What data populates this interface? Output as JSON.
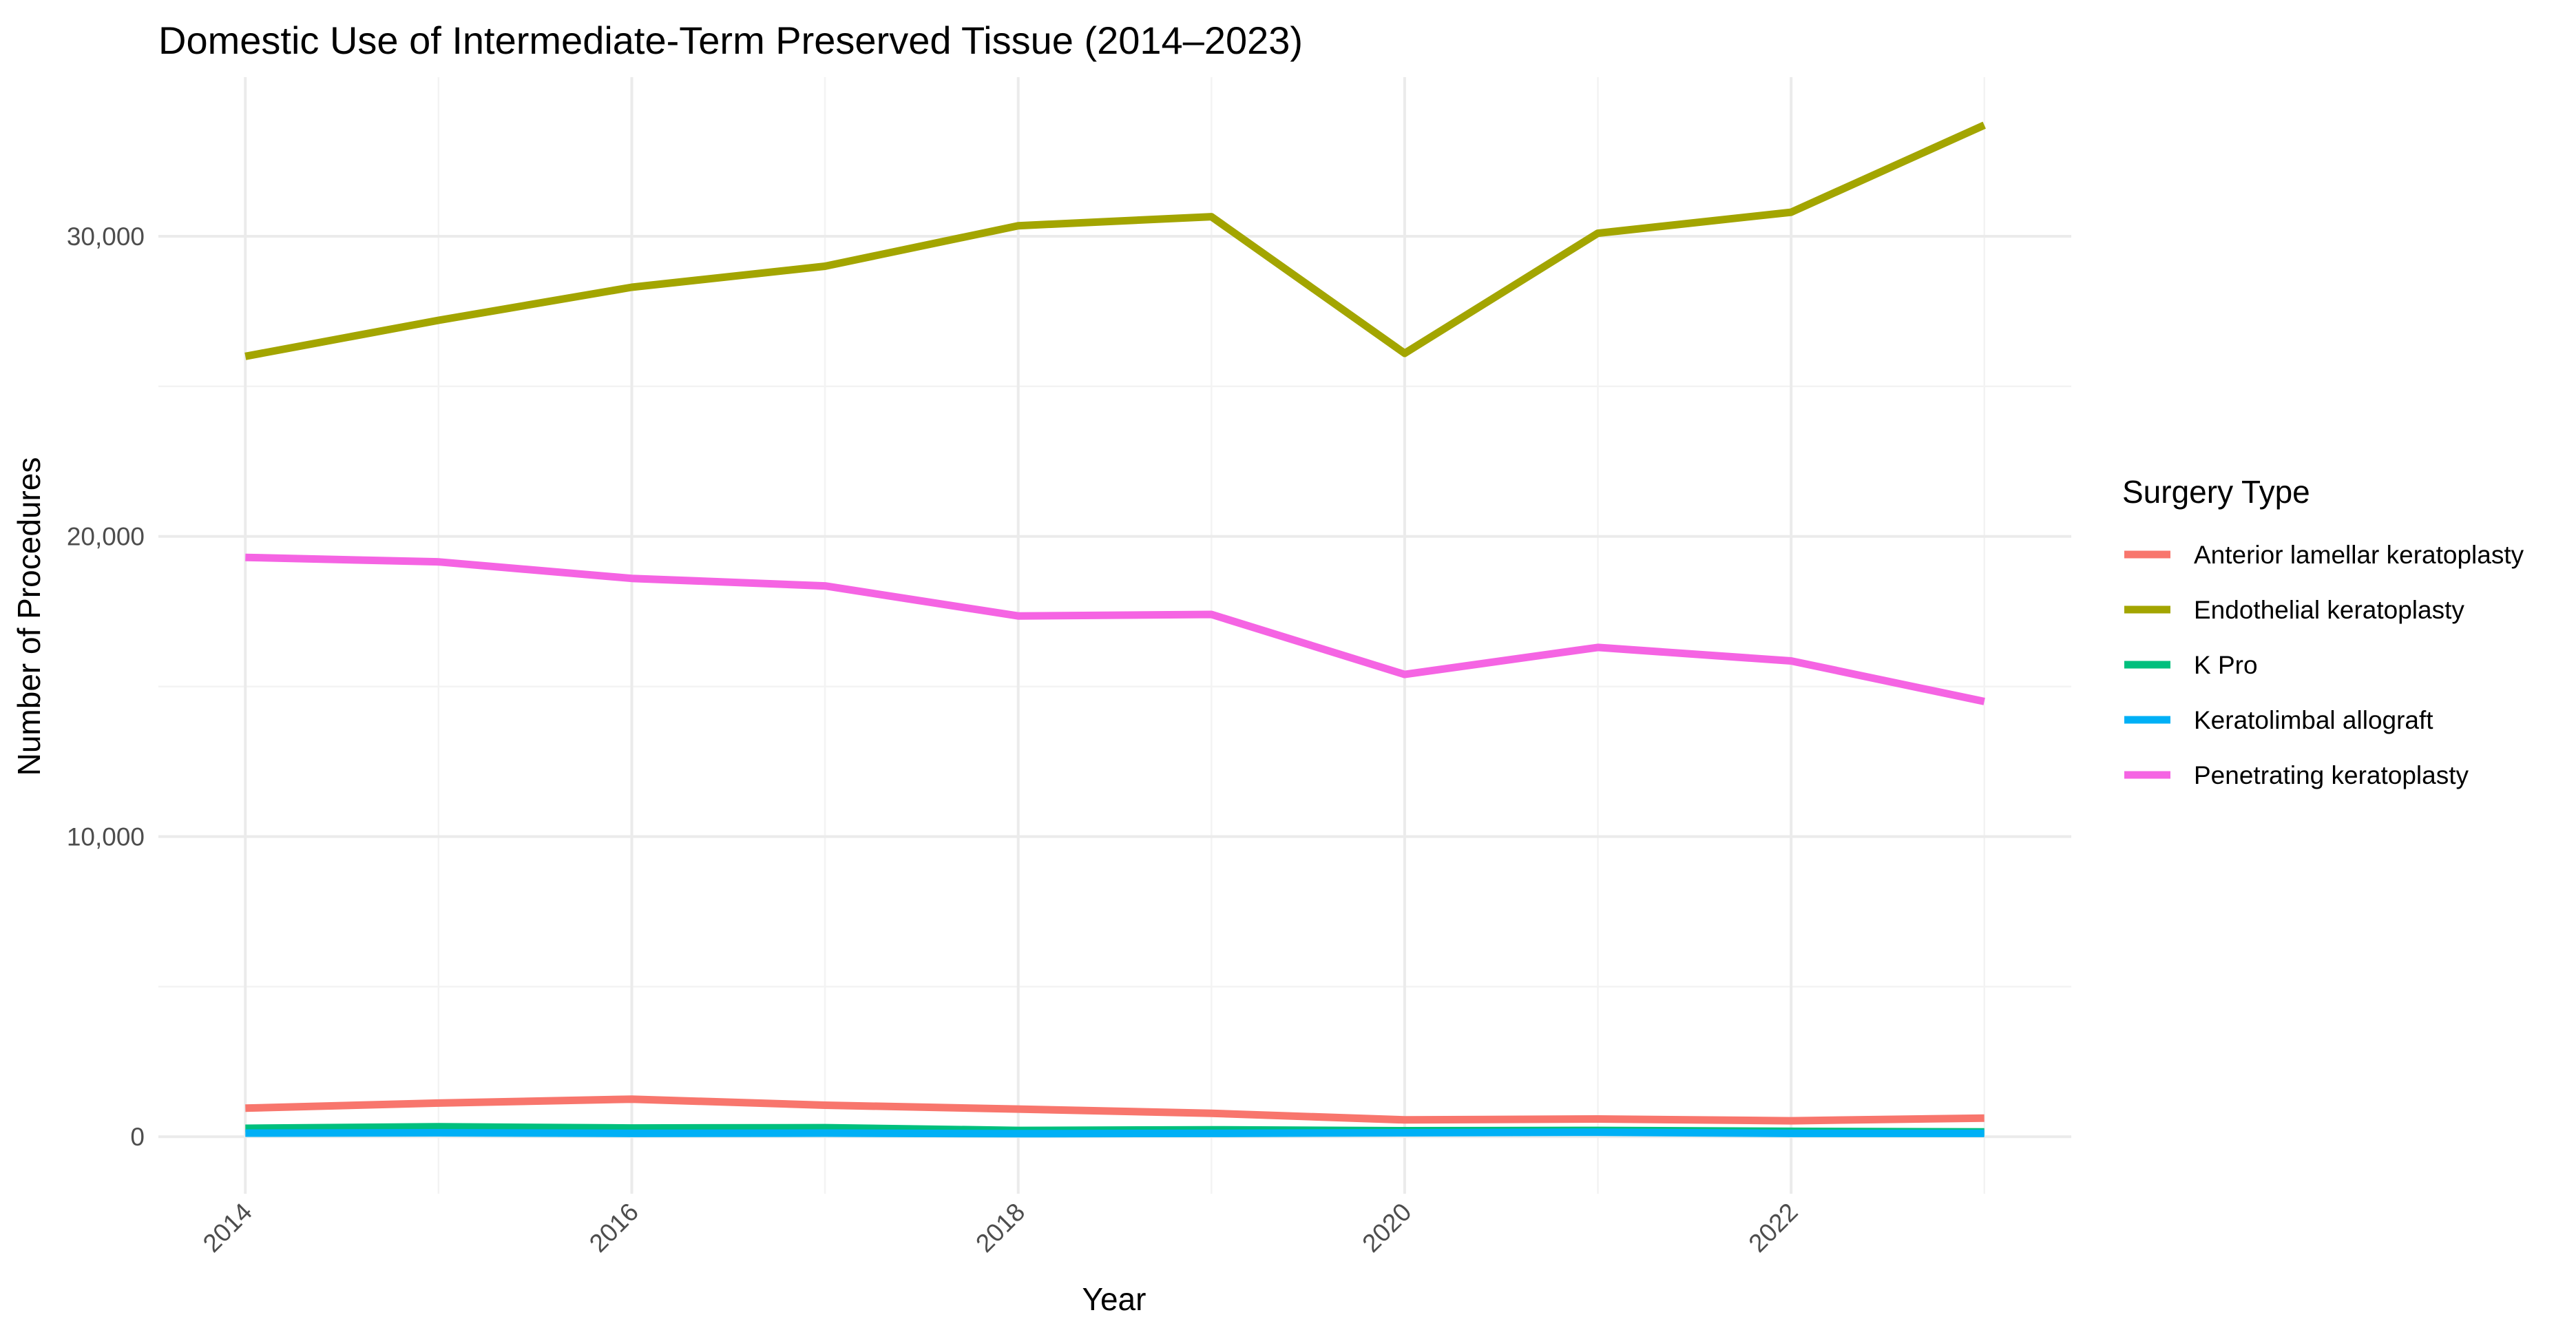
{
  "chart_data": {
    "type": "line",
    "title": "Domestic Use of Intermediate-Term Preserved Tissue (2014–2023)",
    "xlabel": "Year",
    "ylabel": "Number of Procedures",
    "x": [
      2014,
      2015,
      2016,
      2017,
      2018,
      2019,
      2020,
      2021,
      2022,
      2023
    ],
    "xlim": [
      2013.55,
      2023.45
    ],
    "ylim": [
      -1900,
      35300
    ],
    "x_ticks": [
      2014,
      2016,
      2018,
      2020,
      2022
    ],
    "x_tick_labels": [
      "2014",
      "2016",
      "2018",
      "2020",
      "2022"
    ],
    "y_ticks": [
      0,
      10000,
      20000,
      30000
    ],
    "y_tick_labels": [
      "0",
      "10,000",
      "20,000",
      "30,000"
    ],
    "y_minor_ticks": [
      5000,
      15000,
      25000
    ],
    "grid": true,
    "legend": {
      "title": "Surgery Type",
      "position": "right"
    },
    "series": [
      {
        "name": "Anterior lamellar keratoplasty",
        "color": "#F8766D",
        "values": [
          950,
          1120,
          1250,
          1050,
          920,
          780,
          560,
          590,
          530,
          620
        ]
      },
      {
        "name": "Endothelial keratoplasty",
        "color": "#A3A500",
        "values": [
          26000,
          27200,
          28300,
          29000,
          30350,
          30650,
          26100,
          30100,
          30800,
          33700
        ]
      },
      {
        "name": "K Pro",
        "color": "#00BF7D",
        "values": [
          280,
          330,
          290,
          300,
          210,
          230,
          200,
          210,
          180,
          160
        ]
      },
      {
        "name": "Keratolimbal allograft",
        "color": "#00B0F6",
        "values": [
          120,
          130,
          110,
          120,
          100,
          110,
          130,
          150,
          110,
          110
        ]
      },
      {
        "name": "Penetrating keratoplasty",
        "color": "#F564E3",
        "values": [
          19300,
          19150,
          18600,
          18350,
          17350,
          17400,
          15400,
          16300,
          15850,
          14500
        ]
      }
    ]
  }
}
